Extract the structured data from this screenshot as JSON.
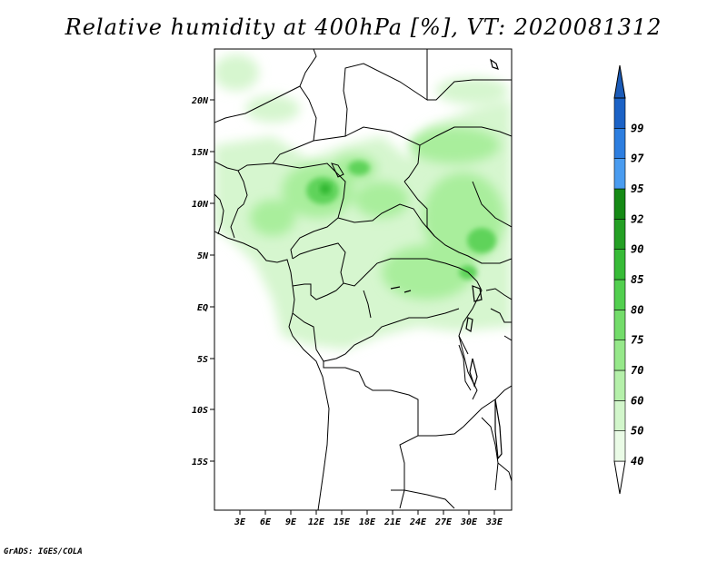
{
  "title": "Relative humidity at 400hPa [%], VT: 2020081312",
  "credit": "GrADS: IGES/COLA",
  "map": {
    "lat_labels": [
      "20N",
      "15N",
      "10N",
      "5N",
      "EQ",
      "5S",
      "10S",
      "15S"
    ],
    "lon_labels": [
      "3E",
      "6E",
      "9E",
      "12E",
      "15E",
      "18E",
      "21E",
      "24E",
      "27E",
      "30E",
      "33E"
    ]
  },
  "colorbar": {
    "levels": [
      {
        "label": "40",
        "color": "#eafbe6"
      },
      {
        "label": "50",
        "color": "#d2f6cb"
      },
      {
        "label": "60",
        "color": "#b5f0aa"
      },
      {
        "label": "70",
        "color": "#96e88a"
      },
      {
        "label": "75",
        "color": "#73dc6a"
      },
      {
        "label": "80",
        "color": "#52cf4f"
      },
      {
        "label": "85",
        "color": "#37bb37"
      },
      {
        "label": "90",
        "color": "#24a024"
      },
      {
        "label": "92",
        "color": "#158a15"
      },
      {
        "label": "95",
        "color": "#4a9cf0"
      },
      {
        "label": "97",
        "color": "#2d7ee0"
      },
      {
        "label": "99",
        "color": "#1b62c6"
      }
    ],
    "top_color": "#1b5bb8"
  }
}
